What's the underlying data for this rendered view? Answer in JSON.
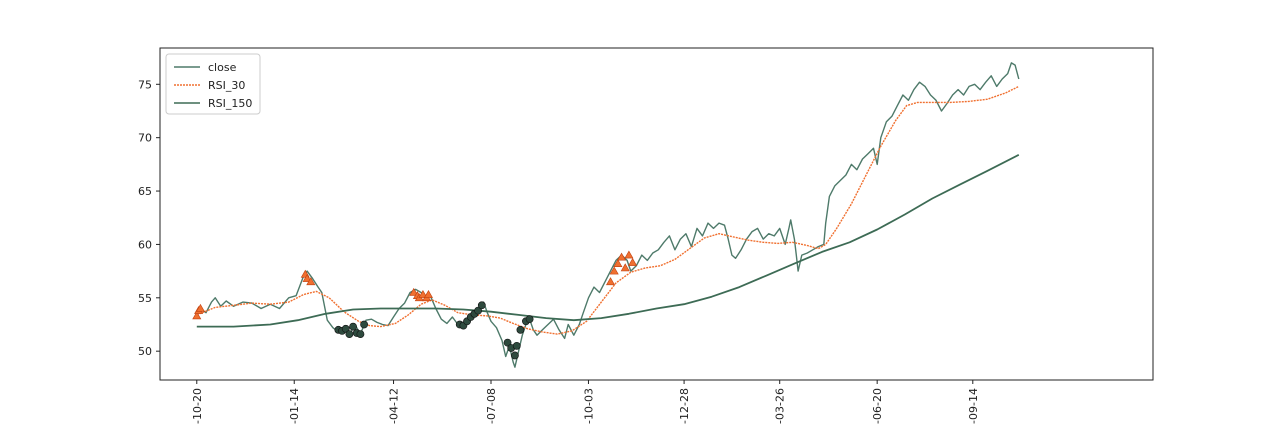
{
  "chart_data": {
    "type": "line",
    "title": "",
    "xlabel": "",
    "ylabel": "",
    "ylim": [
      47.3,
      78.4
    ],
    "x_range_index": [
      0,
      540
    ],
    "x_ticks": [
      {
        "i": 20,
        "label": "-10-20"
      },
      {
        "i": 73,
        "label": "-01-14"
      },
      {
        "i": 127,
        "label": "-04-12"
      },
      {
        "i": 180,
        "label": "-07-08"
      },
      {
        "i": 233,
        "label": "-10-03"
      },
      {
        "i": 285,
        "label": "-12-28"
      },
      {
        "i": 337,
        "label": "-03-26"
      },
      {
        "i": 390,
        "label": "-06-20"
      },
      {
        "i": 442,
        "label": "-09-14"
      }
    ],
    "y_ticks": [
      50,
      55,
      60,
      65,
      70,
      75
    ],
    "legend_position": "upper-left",
    "colors": {
      "close": "#4e7a6a",
      "RSI_30": "#f07030",
      "RSI_150": "#3d6b55",
      "buy_marker": "#f07030",
      "sell_marker": "#2e4a3e"
    },
    "series": [
      {
        "name": "close",
        "style": "line",
        "points": [
          [
            20,
            53.3
          ],
          [
            22,
            54.0
          ],
          [
            25,
            53.6
          ],
          [
            28,
            54.6
          ],
          [
            30,
            55.0
          ],
          [
            33,
            54.2
          ],
          [
            36,
            54.7
          ],
          [
            40,
            54.2
          ],
          [
            45,
            54.6
          ],
          [
            50,
            54.5
          ],
          [
            55,
            54.0
          ],
          [
            60,
            54.4
          ],
          [
            65,
            54.0
          ],
          [
            70,
            55.0
          ],
          [
            74,
            55.2
          ],
          [
            78,
            57.0
          ],
          [
            80,
            57.5
          ],
          [
            83,
            56.8
          ],
          [
            86,
            56.0
          ],
          [
            88,
            55.5
          ],
          [
            91,
            52.9
          ],
          [
            94,
            52.2
          ],
          [
            97,
            51.8
          ],
          [
            100,
            52.2
          ],
          [
            103,
            51.5
          ],
          [
            106,
            52.5
          ],
          [
            109,
            51.6
          ],
          [
            112,
            52.9
          ],
          [
            115,
            53.0
          ],
          [
            118,
            52.7
          ],
          [
            121,
            52.5
          ],
          [
            124,
            52.4
          ],
          [
            127,
            53.2
          ],
          [
            130,
            54.0
          ],
          [
            133,
            54.5
          ],
          [
            136,
            55.5
          ],
          [
            139,
            55.8
          ],
          [
            142,
            55.5
          ],
          [
            144,
            55.0
          ],
          [
            147,
            55.2
          ],
          [
            150,
            54.0
          ],
          [
            153,
            53.0
          ],
          [
            156,
            52.6
          ],
          [
            159,
            53.2
          ],
          [
            162,
            52.5
          ],
          [
            165,
            52.3
          ],
          [
            168,
            53.0
          ],
          [
            171,
            53.5
          ],
          [
            174,
            54.0
          ],
          [
            176,
            54.6
          ],
          [
            178,
            53.6
          ],
          [
            180,
            52.8
          ],
          [
            183,
            52.2
          ],
          [
            186,
            51.0
          ],
          [
            188,
            49.5
          ],
          [
            190,
            50.5
          ],
          [
            192,
            49.0
          ],
          [
            193,
            48.5
          ],
          [
            195,
            50.0
          ],
          [
            197,
            51.5
          ],
          [
            199,
            52.5
          ],
          [
            201,
            53.0
          ],
          [
            203,
            52.0
          ],
          [
            205,
            51.5
          ],
          [
            208,
            52.0
          ],
          [
            211,
            52.5
          ],
          [
            214,
            53.0
          ],
          [
            217,
            52.0
          ],
          [
            220,
            51.2
          ],
          [
            222,
            52.5
          ],
          [
            225,
            51.5
          ],
          [
            228,
            52.5
          ],
          [
            230,
            53.5
          ],
          [
            233,
            55.0
          ],
          [
            236,
            56.0
          ],
          [
            239,
            55.5
          ],
          [
            242,
            56.5
          ],
          [
            245,
            57.5
          ],
          [
            248,
            58.5
          ],
          [
            251,
            59.0
          ],
          [
            254,
            58.5
          ],
          [
            256,
            57.5
          ],
          [
            259,
            58.0
          ],
          [
            262,
            59.0
          ],
          [
            265,
            58.5
          ],
          [
            268,
            59.2
          ],
          [
            271,
            59.5
          ],
          [
            274,
            60.2
          ],
          [
            277,
            60.8
          ],
          [
            280,
            59.5
          ],
          [
            283,
            60.5
          ],
          [
            286,
            61.0
          ],
          [
            289,
            59.8
          ],
          [
            292,
            61.5
          ],
          [
            295,
            60.8
          ],
          [
            298,
            62.0
          ],
          [
            301,
            61.5
          ],
          [
            304,
            62.0
          ],
          [
            307,
            61.8
          ],
          [
            309,
            60.5
          ],
          [
            311,
            59.0
          ],
          [
            313,
            58.7
          ],
          [
            316,
            59.5
          ],
          [
            319,
            60.5
          ],
          [
            322,
            61.2
          ],
          [
            325,
            61.5
          ],
          [
            328,
            60.5
          ],
          [
            331,
            61.0
          ],
          [
            334,
            60.8
          ],
          [
            337,
            61.5
          ],
          [
            340,
            60.0
          ],
          [
            342,
            61.5
          ],
          [
            343,
            62.3
          ],
          [
            345,
            60.5
          ],
          [
            346,
            59.0
          ],
          [
            347,
            57.5
          ],
          [
            349,
            59.0
          ],
          [
            352,
            59.2
          ],
          [
            355,
            59.5
          ],
          [
            358,
            59.8
          ],
          [
            361,
            60.0
          ],
          [
            362,
            62.0
          ],
          [
            364,
            64.5
          ],
          [
            367,
            65.5
          ],
          [
            370,
            66.0
          ],
          [
            373,
            66.5
          ],
          [
            376,
            67.5
          ],
          [
            379,
            67.0
          ],
          [
            382,
            68.0
          ],
          [
            385,
            68.5
          ],
          [
            388,
            69.0
          ],
          [
            390,
            67.5
          ],
          [
            392,
            70.0
          ],
          [
            395,
            71.5
          ],
          [
            398,
            72.0
          ],
          [
            401,
            73.0
          ],
          [
            404,
            74.0
          ],
          [
            407,
            73.5
          ],
          [
            410,
            74.5
          ],
          [
            413,
            75.2
          ],
          [
            416,
            74.8
          ],
          [
            419,
            74.0
          ],
          [
            422,
            73.5
          ],
          [
            425,
            72.5
          ],
          [
            428,
            73.2
          ],
          [
            431,
            74.0
          ],
          [
            434,
            74.5
          ],
          [
            437,
            74.0
          ],
          [
            440,
            74.8
          ],
          [
            443,
            75.0
          ],
          [
            446,
            74.5
          ],
          [
            449,
            75.2
          ],
          [
            452,
            75.8
          ],
          [
            455,
            74.8
          ],
          [
            458,
            75.5
          ],
          [
            461,
            76.0
          ],
          [
            463,
            77.0
          ],
          [
            465,
            76.8
          ],
          [
            467,
            75.5
          ]
        ]
      },
      {
        "name": "RSI_30",
        "style": "line",
        "points": [
          [
            20,
            53.4
          ],
          [
            30,
            54.1
          ],
          [
            40,
            54.3
          ],
          [
            50,
            54.5
          ],
          [
            60,
            54.4
          ],
          [
            70,
            54.6
          ],
          [
            78,
            55.3
          ],
          [
            85,
            55.6
          ],
          [
            92,
            55.0
          ],
          [
            100,
            53.7
          ],
          [
            108,
            52.8
          ],
          [
            114,
            52.4
          ],
          [
            120,
            52.3
          ],
          [
            128,
            52.6
          ],
          [
            135,
            53.4
          ],
          [
            142,
            54.4
          ],
          [
            148,
            54.8
          ],
          [
            155,
            54.3
          ],
          [
            162,
            53.6
          ],
          [
            170,
            53.4
          ],
          [
            178,
            53.3
          ],
          [
            185,
            53.1
          ],
          [
            192,
            52.6
          ],
          [
            200,
            52.1
          ],
          [
            208,
            51.8
          ],
          [
            216,
            51.6
          ],
          [
            224,
            51.9
          ],
          [
            232,
            52.8
          ],
          [
            240,
            54.6
          ],
          [
            248,
            56.4
          ],
          [
            256,
            57.4
          ],
          [
            264,
            57.8
          ],
          [
            272,
            58.0
          ],
          [
            280,
            58.6
          ],
          [
            288,
            59.6
          ],
          [
            296,
            60.6
          ],
          [
            304,
            61.0
          ],
          [
            312,
            60.7
          ],
          [
            320,
            60.4
          ],
          [
            328,
            60.2
          ],
          [
            336,
            60.1
          ],
          [
            344,
            60.2
          ],
          [
            352,
            59.9
          ],
          [
            358,
            59.6
          ],
          [
            362,
            60.0
          ],
          [
            368,
            61.5
          ],
          [
            376,
            63.8
          ],
          [
            384,
            66.5
          ],
          [
            392,
            69.2
          ],
          [
            400,
            71.6
          ],
          [
            406,
            73.0
          ],
          [
            412,
            73.3
          ],
          [
            420,
            73.3
          ],
          [
            430,
            73.3
          ],
          [
            440,
            73.4
          ],
          [
            450,
            73.6
          ],
          [
            460,
            74.2
          ],
          [
            467,
            74.8
          ]
        ]
      },
      {
        "name": "RSI_150",
        "style": "line",
        "points": [
          [
            20,
            52.3
          ],
          [
            40,
            52.3
          ],
          [
            60,
            52.5
          ],
          [
            75,
            52.9
          ],
          [
            90,
            53.5
          ],
          [
            105,
            53.9
          ],
          [
            120,
            54.0
          ],
          [
            135,
            54.0
          ],
          [
            150,
            54.0
          ],
          [
            165,
            53.9
          ],
          [
            180,
            53.7
          ],
          [
            195,
            53.4
          ],
          [
            210,
            53.1
          ],
          [
            225,
            52.9
          ],
          [
            240,
            53.1
          ],
          [
            255,
            53.5
          ],
          [
            270,
            54.0
          ],
          [
            285,
            54.4
          ],
          [
            300,
            55.1
          ],
          [
            315,
            56.0
          ],
          [
            330,
            57.1
          ],
          [
            345,
            58.2
          ],
          [
            360,
            59.3
          ],
          [
            375,
            60.2
          ],
          [
            390,
            61.4
          ],
          [
            405,
            62.8
          ],
          [
            420,
            64.3
          ],
          [
            435,
            65.6
          ],
          [
            450,
            66.9
          ],
          [
            467,
            68.4
          ]
        ]
      },
      {
        "name": "buy_signals",
        "style": "markers-triangle",
        "points": [
          [
            20,
            53.3
          ],
          [
            21,
            53.8
          ],
          [
            22,
            54.0
          ],
          [
            79,
            57.2
          ],
          [
            80,
            56.8
          ],
          [
            82,
            56.5
          ],
          [
            138,
            55.5
          ],
          [
            140,
            55.2
          ],
          [
            141,
            55.0
          ],
          [
            143,
            55.3
          ],
          [
            145,
            55.0
          ],
          [
            146,
            55.3
          ],
          [
            245,
            56.5
          ],
          [
            247,
            57.5
          ],
          [
            249,
            58.2
          ],
          [
            251,
            58.8
          ],
          [
            253,
            57.8
          ],
          [
            255,
            59.0
          ],
          [
            257,
            58.3
          ]
        ]
      },
      {
        "name": "sell_signals",
        "style": "markers-circle",
        "points": [
          [
            97,
            52.0
          ],
          [
            99,
            51.9
          ],
          [
            101,
            52.1
          ],
          [
            103,
            51.6
          ],
          [
            105,
            52.3
          ],
          [
            107,
            51.7
          ],
          [
            109,
            51.6
          ],
          [
            111,
            52.5
          ],
          [
            163,
            52.5
          ],
          [
            165,
            52.4
          ],
          [
            167,
            52.8
          ],
          [
            169,
            53.2
          ],
          [
            171,
            53.5
          ],
          [
            173,
            53.8
          ],
          [
            175,
            54.3
          ],
          [
            189,
            50.8
          ],
          [
            191,
            50.3
          ],
          [
            193,
            49.6
          ],
          [
            194,
            50.5
          ],
          [
            196,
            52.0
          ],
          [
            199,
            52.8
          ],
          [
            201,
            53.0
          ]
        ]
      }
    ],
    "legend": [
      "close",
      "RSI_30",
      "RSI_150"
    ]
  }
}
